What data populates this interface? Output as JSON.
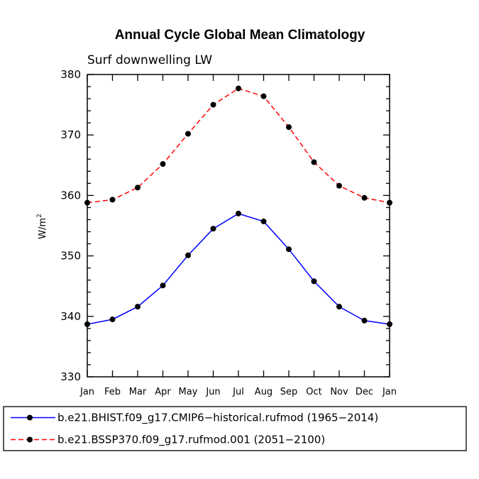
{
  "chart_data": {
    "type": "line",
    "title": "Annual Cycle Global Mean Climatology",
    "subtitle": "Surf downwelling LW",
    "ylabel_base": "W/m",
    "ylabel_sup": "2",
    "ylim": [
      330,
      380
    ],
    "yticks": [
      330,
      340,
      350,
      360,
      370,
      380
    ],
    "ytick_labels": [
      "330",
      "340",
      "350",
      "360",
      "370",
      "380"
    ],
    "categories": [
      "Jan",
      "Feb",
      "Mar",
      "Apr",
      "May",
      "Jun",
      "Jul",
      "Aug",
      "Sep",
      "Oct",
      "Nov",
      "Dec",
      "Jan"
    ],
    "series": [
      {
        "name": "b.e21.BHIST.f09_g17.CMIP6−historical.rufmod (1965−2014)",
        "color": "#0000ff",
        "dash": "solid",
        "values": [
          338.7,
          339.5,
          341.6,
          345.1,
          350.1,
          354.5,
          357.0,
          355.7,
          351.1,
          345.8,
          341.6,
          339.3,
          338.7
        ]
      },
      {
        "name": "b.e21.BSSP370.f09_g17.rufmod.001 (2051−2100)",
        "color": "#ff0000",
        "dash": "dashed",
        "values": [
          358.8,
          359.3,
          361.3,
          365.2,
          370.2,
          375.0,
          377.7,
          376.4,
          371.3,
          365.5,
          361.6,
          359.6,
          358.8
        ]
      }
    ],
    "legend_position": "bottom"
  }
}
